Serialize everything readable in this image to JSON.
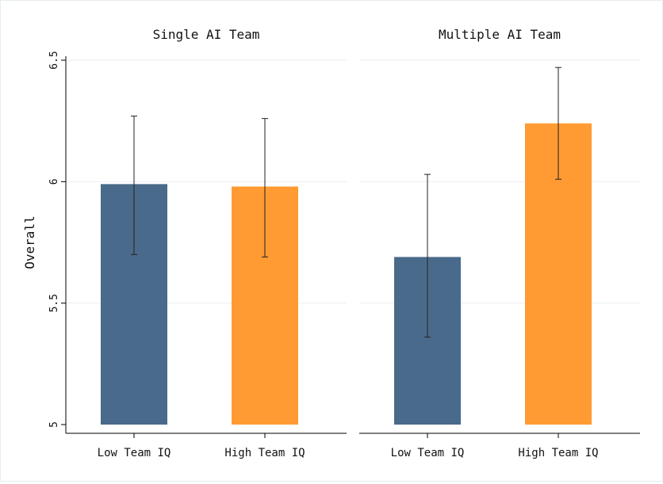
{
  "y_axis_label": "Overall",
  "colors": {
    "low": "#4a6a8b",
    "high": "#ff9b32",
    "grid": "#e9eff2",
    "axis": "#000000"
  },
  "chart_data": {
    "type": "bar",
    "ylabel": "Overall",
    "ylim": [
      5,
      6.5
    ],
    "yticks": [
      "5",
      "5.5",
      "6",
      "6.5"
    ],
    "grid": true,
    "panels": [
      {
        "title": "Single AI Team",
        "categories": [
          "Low Team IQ",
          "High Team IQ"
        ],
        "values": [
          5.99,
          5.98
        ],
        "ci_low": [
          5.7,
          5.69
        ],
        "ci_high": [
          6.27,
          6.26
        ]
      },
      {
        "title": "Multiple AI Team",
        "categories": [
          "Low Team IQ",
          "High Team IQ"
        ],
        "values": [
          5.69,
          6.24
        ],
        "ci_low": [
          5.36,
          6.01
        ],
        "ci_high": [
          6.03,
          6.47
        ]
      }
    ]
  }
}
